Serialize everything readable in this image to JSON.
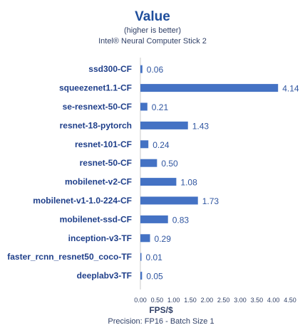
{
  "chart_data": {
    "type": "bar",
    "orientation": "horizontal",
    "title": "Value",
    "subtitle_1": "(higher is better)",
    "subtitle_2": "Intel® Neural Computer Stick 2",
    "xlabel": "FPS/$",
    "footnote": "Precision: FP16 - Batch Size 1",
    "categories": [
      "ssd300-CF",
      "squeezenet1.1-CF",
      "se-resnext-50-CF",
      "resnet-18-pytorch",
      "resnet-101-CF",
      "resnet-50-CF",
      "mobilenet-v2-CF",
      "mobilenet-v1-1.0-224-CF",
      "mobilenet-ssd-CF",
      "inception-v3-TF",
      "faster_rcnn_resnet50_coco-TF",
      "deeplabv3-TF"
    ],
    "values": [
      0.06,
      4.14,
      0.21,
      1.43,
      0.24,
      0.5,
      1.08,
      1.73,
      0.83,
      0.29,
      0.01,
      0.05
    ],
    "value_labels": [
      "0.06",
      "4.14",
      "0.21",
      "1.43",
      "0.24",
      "0.50",
      "1.08",
      "1.73",
      "0.83",
      "0.29",
      "0.01",
      "0.05"
    ],
    "xlim": [
      0,
      4.5
    ],
    "xticks": [
      "0.00",
      "0.50",
      "1.00",
      "1.50",
      "2.00",
      "2.50",
      "3.00",
      "3.50",
      "4.00",
      "4.50"
    ],
    "grid": false,
    "legend": "none",
    "colors": {
      "bar": "#4472c4",
      "title": "#1f4e9c",
      "category_label": "#1f3f8a",
      "value_label": "#2f55a0",
      "text": "#2f3f66"
    }
  }
}
